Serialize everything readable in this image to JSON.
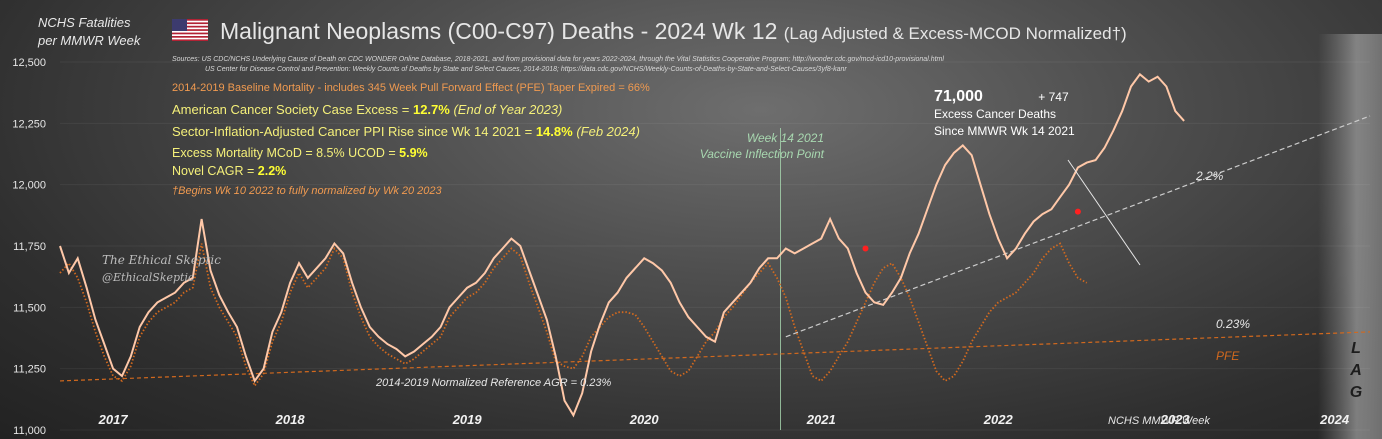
{
  "y_axis_title_line1": "NCHS Fatalities",
  "y_axis_title_line2": "per MMWR Week",
  "title_main": "Malignant Neoplasms (C00-C97) Deaths - 2024 Wk 12",
  "title_sub": "(Lag Adjusted & Excess-MCOD Normalized†)",
  "flag_icon": "us-flag-icon",
  "sources_line1": "Sources:   US CDC/NCHS Underlying Cause of Death on CDC WONDER Online Database, 2018-2021, and from provisional data for years 2022-2024, through the Vital Statistics Cooperative Program; http://wonder.cdc.gov/mcd-icd10-provisional.html",
  "sources_line2": "US Center for Disease Control and Prevention: Weekly Counts of Deaths by State and Select Causes, 2014-2018; https://data.cdc.gov/NCHS/Weekly-Counts-of-Deaths-by-State-and-Select-Causes/3yf8-kanr",
  "baseline_note": "2014-2019 Baseline Mortality - includes 345 Week Pull Forward Effect (PFE) Taper Expired =   66%",
  "acs_label": "American Cancer Society Case Excess = ",
  "acs_value": "12.7%",
  "acs_note": "(End of Year 2023)",
  "ppi_label": "Sector-Inflation-Adjusted Cancer PPI Rise since Wk 14 2021 = ",
  "ppi_value": "14.8%",
  "ppi_note": "(Feb 2024)",
  "excess_label": "Excess Mortality MCoD = 8.5%   UCOD = ",
  "excess_ucod": "5.9%",
  "cagr_label": "Novel CAGR = ",
  "cagr_value": "2.2%",
  "footnote": "†Begins Wk 10 2022 to fully normalized by Wk 20 2023",
  "vaccine_line1": "Week 14 2021",
  "vaccine_line2": "Vaccine Inflection Point",
  "excess_deaths_number": "71,000",
  "excess_deaths_plus": "+ 747",
  "excess_deaths_line2": "Excess Cancer Deaths",
  "excess_deaths_line3": "Since MMWR Wk 14 2021",
  "watermark_line1": "The Ethical Skeptic",
  "watermark_line2": "@EthicalSkeptic",
  "lag_label": "L A G",
  "colors": {
    "main_line": "#ffc8a8",
    "pfe_line": "#d2691e",
    "trend_dash": "#cccccc",
    "ref_dash": "#d2691e",
    "marker": "#ff2020",
    "yellow": "#f5f07a",
    "orange": "#f09a50"
  },
  "chart_data": {
    "type": "line",
    "y_ticks": [
      "12,500",
      "12,250",
      "12,000",
      "11,750",
      "11,500",
      "11,250",
      "11,000"
    ],
    "ylim": [
      11000,
      12500
    ],
    "xlim": [
      2016.9,
      2024.3
    ],
    "x_labels": [
      {
        "label": "2017",
        "x": 2017.2
      },
      {
        "label": "2018",
        "x": 2018.2
      },
      {
        "label": "2019",
        "x": 2019.2
      },
      {
        "label": "2020",
        "x": 2020.2
      },
      {
        "label": "2021",
        "x": 2021.2
      },
      {
        "label": "2022",
        "x": 2022.2
      },
      {
        "label": "2023",
        "x": 2023.2
      },
      {
        "label": "2024",
        "x": 2024.1
      }
    ],
    "x_axis_title": "NCHS MMWR Week",
    "series": [
      {
        "role": "main",
        "points": [
          [
            2016.9,
            11750
          ],
          [
            2016.95,
            11640
          ],
          [
            2017.0,
            11700
          ],
          [
            2017.05,
            11580
          ],
          [
            2017.1,
            11450
          ],
          [
            2017.15,
            11350
          ],
          [
            2017.2,
            11250
          ],
          [
            2017.25,
            11220
          ],
          [
            2017.3,
            11300
          ],
          [
            2017.35,
            11420
          ],
          [
            2017.4,
            11480
          ],
          [
            2017.45,
            11520
          ],
          [
            2017.5,
            11540
          ],
          [
            2017.55,
            11560
          ],
          [
            2017.6,
            11600
          ],
          [
            2017.65,
            11620
          ],
          [
            2017.7,
            11860
          ],
          [
            2017.75,
            11650
          ],
          [
            2017.8,
            11550
          ],
          [
            2017.85,
            11480
          ],
          [
            2017.9,
            11420
          ],
          [
            2017.95,
            11300
          ],
          [
            2018.0,
            11200
          ],
          [
            2018.05,
            11250
          ],
          [
            2018.1,
            11400
          ],
          [
            2018.15,
            11480
          ],
          [
            2018.2,
            11600
          ],
          [
            2018.25,
            11680
          ],
          [
            2018.3,
            11620
          ],
          [
            2018.35,
            11660
          ],
          [
            2018.4,
            11700
          ],
          [
            2018.45,
            11760
          ],
          [
            2018.5,
            11720
          ],
          [
            2018.55,
            11600
          ],
          [
            2018.6,
            11500
          ],
          [
            2018.65,
            11420
          ],
          [
            2018.7,
            11380
          ],
          [
            2018.75,
            11350
          ],
          [
            2018.8,
            11330
          ],
          [
            2018.85,
            11300
          ],
          [
            2018.9,
            11320
          ],
          [
            2018.95,
            11350
          ],
          [
            2019.0,
            11380
          ],
          [
            2019.05,
            11420
          ],
          [
            2019.1,
            11500
          ],
          [
            2019.15,
            11540
          ],
          [
            2019.2,
            11580
          ],
          [
            2019.25,
            11600
          ],
          [
            2019.3,
            11640
          ],
          [
            2019.35,
            11700
          ],
          [
            2019.4,
            11740
          ],
          [
            2019.45,
            11780
          ],
          [
            2019.5,
            11750
          ],
          [
            2019.55,
            11650
          ],
          [
            2019.6,
            11550
          ],
          [
            2019.65,
            11450
          ],
          [
            2019.7,
            11300
          ],
          [
            2019.75,
            11120
          ],
          [
            2019.8,
            11060
          ],
          [
            2019.85,
            11150
          ],
          [
            2019.9,
            11320
          ],
          [
            2019.95,
            11430
          ],
          [
            2020.0,
            11520
          ],
          [
            2020.05,
            11560
          ],
          [
            2020.1,
            11620
          ],
          [
            2020.15,
            11660
          ],
          [
            2020.2,
            11700
          ],
          [
            2020.25,
            11680
          ],
          [
            2020.3,
            11650
          ],
          [
            2020.35,
            11600
          ],
          [
            2020.4,
            11520
          ],
          [
            2020.45,
            11460
          ],
          [
            2020.5,
            11420
          ],
          [
            2020.55,
            11380
          ],
          [
            2020.6,
            11360
          ],
          [
            2020.65,
            11480
          ],
          [
            2020.7,
            11520
          ],
          [
            2020.75,
            11560
          ],
          [
            2020.8,
            11600
          ],
          [
            2020.85,
            11660
          ],
          [
            2020.9,
            11700
          ],
          [
            2020.95,
            11700
          ],
          [
            2021.0,
            11740
          ],
          [
            2021.05,
            11720
          ],
          [
            2021.1,
            11740
          ],
          [
            2021.15,
            11760
          ],
          [
            2021.2,
            11780
          ],
          [
            2021.25,
            11860
          ],
          [
            2021.3,
            11780
          ],
          [
            2021.35,
            11740
          ],
          [
            2021.4,
            11640
          ],
          [
            2021.45,
            11560
          ],
          [
            2021.5,
            11520
          ],
          [
            2021.55,
            11510
          ],
          [
            2021.6,
            11560
          ],
          [
            2021.65,
            11620
          ],
          [
            2021.7,
            11720
          ],
          [
            2021.75,
            11800
          ],
          [
            2021.8,
            11900
          ],
          [
            2021.85,
            12000
          ],
          [
            2021.9,
            12080
          ],
          [
            2021.95,
            12130
          ],
          [
            2022.0,
            12160
          ],
          [
            2022.05,
            12120
          ],
          [
            2022.1,
            12000
          ],
          [
            2022.15,
            11880
          ],
          [
            2022.2,
            11780
          ],
          [
            2022.25,
            11700
          ],
          [
            2022.3,
            11740
          ],
          [
            2022.35,
            11800
          ],
          [
            2022.4,
            11850
          ],
          [
            2022.45,
            11880
          ],
          [
            2022.5,
            11900
          ],
          [
            2022.55,
            11950
          ],
          [
            2022.6,
            12000
          ],
          [
            2022.65,
            12070
          ],
          [
            2022.7,
            12090
          ],
          [
            2022.75,
            12100
          ],
          [
            2022.8,
            12150
          ],
          [
            2022.85,
            12220
          ],
          [
            2022.9,
            12300
          ],
          [
            2022.95,
            12400
          ],
          [
            2023.0,
            12450
          ],
          [
            2023.05,
            12420
          ],
          [
            2023.1,
            12440
          ],
          [
            2023.15,
            12400
          ],
          [
            2023.2,
            12300
          ],
          [
            2023.25,
            12260
          ]
        ]
      },
      {
        "role": "pfe",
        "name": "PFE",
        "points": [
          [
            2016.9,
            11640
          ],
          [
            2016.95,
            11680
          ],
          [
            2017.0,
            11620
          ],
          [
            2017.05,
            11520
          ],
          [
            2017.1,
            11400
          ],
          [
            2017.15,
            11300
          ],
          [
            2017.2,
            11220
          ],
          [
            2017.25,
            11200
          ],
          [
            2017.3,
            11260
          ],
          [
            2017.35,
            11380
          ],
          [
            2017.4,
            11440
          ],
          [
            2017.45,
            11480
          ],
          [
            2017.5,
            11500
          ],
          [
            2017.55,
            11520
          ],
          [
            2017.6,
            11560
          ],
          [
            2017.65,
            11580
          ],
          [
            2017.7,
            11760
          ],
          [
            2017.75,
            11580
          ],
          [
            2017.8,
            11500
          ],
          [
            2017.85,
            11440
          ],
          [
            2017.9,
            11380
          ],
          [
            2017.95,
            11260
          ],
          [
            2018.0,
            11180
          ],
          [
            2018.05,
            11230
          ],
          [
            2018.1,
            11360
          ],
          [
            2018.15,
            11440
          ],
          [
            2018.2,
            11560
          ],
          [
            2018.25,
            11640
          ],
          [
            2018.3,
            11580
          ],
          [
            2018.35,
            11620
          ],
          [
            2018.4,
            11660
          ],
          [
            2018.45,
            11740
          ],
          [
            2018.5,
            11700
          ],
          [
            2018.55,
            11560
          ],
          [
            2018.6,
            11460
          ],
          [
            2018.65,
            11380
          ],
          [
            2018.7,
            11340
          ],
          [
            2018.75,
            11310
          ],
          [
            2018.8,
            11290
          ],
          [
            2018.85,
            11270
          ],
          [
            2018.9,
            11290
          ],
          [
            2018.95,
            11320
          ],
          [
            2019.0,
            11350
          ],
          [
            2019.05,
            11380
          ],
          [
            2019.1,
            11460
          ],
          [
            2019.15,
            11500
          ],
          [
            2019.2,
            11540
          ],
          [
            2019.25,
            11560
          ],
          [
            2019.3,
            11600
          ],
          [
            2019.35,
            11660
          ],
          [
            2019.4,
            11700
          ],
          [
            2019.45,
            11740
          ],
          [
            2019.5,
            11710
          ],
          [
            2019.55,
            11600
          ],
          [
            2019.6,
            11500
          ],
          [
            2019.65,
            11400
          ],
          [
            2019.7,
            11280
          ],
          [
            2019.75,
            11260
          ],
          [
            2019.8,
            11250
          ],
          [
            2019.85,
            11300
          ],
          [
            2019.9,
            11380
          ],
          [
            2019.95,
            11420
          ],
          [
            2020.0,
            11460
          ],
          [
            2020.05,
            11480
          ],
          [
            2020.1,
            11480
          ],
          [
            2020.15,
            11470
          ],
          [
            2020.2,
            11420
          ],
          [
            2020.25,
            11360
          ],
          [
            2020.3,
            11300
          ],
          [
            2020.35,
            11240
          ],
          [
            2020.4,
            11220
          ],
          [
            2020.45,
            11240
          ],
          [
            2020.5,
            11300
          ],
          [
            2020.55,
            11360
          ],
          [
            2020.6,
            11400
          ],
          [
            2020.65,
            11460
          ],
          [
            2020.7,
            11500
          ],
          [
            2020.75,
            11550
          ],
          [
            2020.8,
            11600
          ],
          [
            2020.85,
            11640
          ],
          [
            2020.9,
            11680
          ],
          [
            2020.95,
            11620
          ],
          [
            2021.0,
            11540
          ],
          [
            2021.05,
            11420
          ],
          [
            2021.1,
            11320
          ],
          [
            2021.15,
            11220
          ],
          [
            2021.2,
            11200
          ],
          [
            2021.25,
            11240
          ],
          [
            2021.3,
            11300
          ],
          [
            2021.35,
            11360
          ],
          [
            2021.4,
            11440
          ],
          [
            2021.45,
            11520
          ],
          [
            2021.5,
            11600
          ],
          [
            2021.55,
            11660
          ],
          [
            2021.6,
            11680
          ],
          [
            2021.65,
            11620
          ],
          [
            2021.7,
            11540
          ],
          [
            2021.75,
            11440
          ],
          [
            2021.8,
            11340
          ],
          [
            2021.85,
            11240
          ],
          [
            2021.9,
            11200
          ],
          [
            2021.95,
            11220
          ],
          [
            2022.0,
            11280
          ],
          [
            2022.05,
            11360
          ],
          [
            2022.1,
            11420
          ],
          [
            2022.15,
            11480
          ],
          [
            2022.2,
            11520
          ],
          [
            2022.25,
            11540
          ],
          [
            2022.3,
            11560
          ],
          [
            2022.35,
            11600
          ],
          [
            2022.4,
            11640
          ],
          [
            2022.45,
            11700
          ],
          [
            2022.5,
            11740
          ],
          [
            2022.55,
            11760
          ],
          [
            2022.6,
            11680
          ],
          [
            2022.65,
            11620
          ],
          [
            2022.7,
            11600
          ]
        ]
      }
    ],
    "trend_lines": [
      {
        "label": "2014-2019 Normalized Reference AGR = 0.23%",
        "from": [
          2016.9,
          11200
        ],
        "to": [
          2024.3,
          11400
        ]
      },
      {
        "label": "2.2%",
        "from": [
          2021.0,
          11380
        ],
        "to": [
          2024.3,
          12280
        ]
      }
    ],
    "trend_labels": {
      "upper": "2.2%",
      "lower": "0.23%"
    },
    "markers": [
      [
        2021.45,
        11740
      ],
      [
        2022.65,
        11890
      ]
    ]
  }
}
